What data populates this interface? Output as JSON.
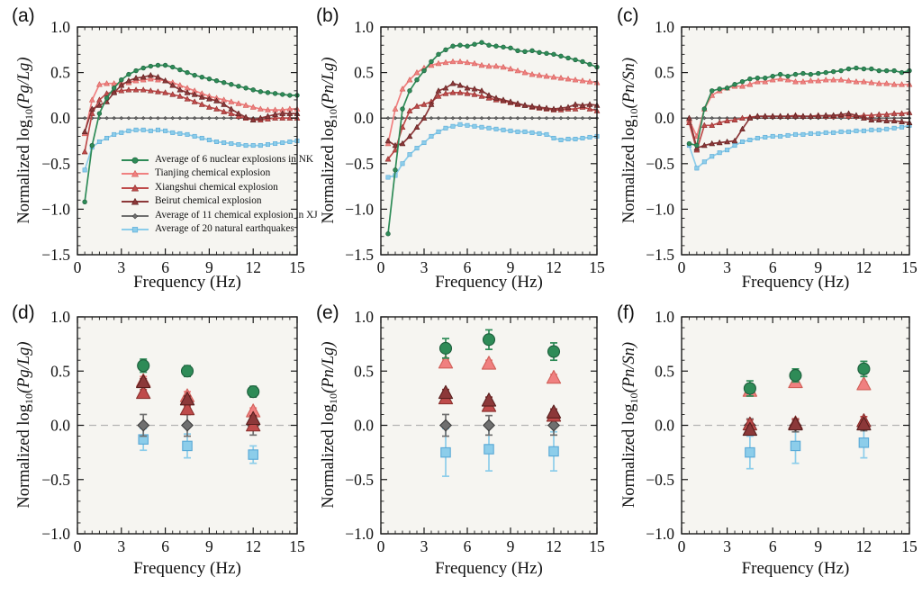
{
  "style": {
    "plot_bg": "#f6f5f1",
    "frame": "#1a1a1a",
    "zero_dash": "#b5b5b5",
    "tick_label": "#111111"
  },
  "series": [
    {
      "id": "nk",
      "label": "Average of 6 nuclear explosions in NK",
      "color": "#2e8b57",
      "edge": "#1d5e3c",
      "marker": "circle"
    },
    {
      "id": "tianjing",
      "label": "Tianjing chemical explosion",
      "color": "#f08080",
      "edge": "#d05f58",
      "marker": "triangle"
    },
    {
      "id": "xiangshui",
      "label": "Xiangshui chemical explosion",
      "color": "#bf4b4b",
      "edge": "#8a2f2c",
      "marker": "triangle"
    },
    {
      "id": "beirut",
      "label": "Beirut chemical explosion",
      "color": "#8c3839",
      "edge": "#591f1e",
      "marker": "triangle"
    },
    {
      "id": "xj",
      "label": "Average of 11 chemical explosion in XJ",
      "color": "#6f6f6f",
      "edge": "#3f3f3f",
      "marker": "diamond"
    },
    {
      "id": "eq",
      "label": "Average of 20 natural earthquakes",
      "color": "#8ccdea",
      "edge": "#58a8d6",
      "marker": "square"
    }
  ],
  "freq_x": [
    0.5,
    1,
    1.5,
    2,
    2.5,
    3,
    3.5,
    4,
    4.5,
    5,
    5.5,
    6,
    6.5,
    7,
    7.5,
    8,
    8.5,
    9,
    9.5,
    10,
    10.5,
    11,
    11.5,
    12,
    12.5,
    13,
    13.5,
    14,
    14.5,
    15
  ],
  "scatter_x": [
    4.5,
    7.5,
    12
  ],
  "chart_data": [
    {
      "type": "line",
      "tag": "(a)",
      "xlabel": "Frequency (Hz)",
      "ylabel_prefix": "Normalized log",
      "ylabel_sub": "10",
      "ylabel_ratio": "(Pg/Lg)",
      "xlim": [
        0,
        15
      ],
      "ylim": [
        -1.5,
        1.0
      ],
      "xticks": [
        0,
        3,
        6,
        9,
        12,
        15
      ],
      "yticks": [
        1.0,
        0.5,
        0.0,
        -0.5,
        -1.0,
        -1.5
      ],
      "series_values": {
        "nk": [
          -0.92,
          -0.3,
          0.05,
          0.22,
          0.33,
          0.42,
          0.48,
          0.52,
          0.55,
          0.57,
          0.58,
          0.58,
          0.56,
          0.53,
          0.5,
          0.47,
          0.45,
          0.43,
          0.41,
          0.39,
          0.37,
          0.35,
          0.33,
          0.31,
          0.29,
          0.28,
          0.27,
          0.26,
          0.25,
          0.25
        ],
        "tianjing": [
          -0.17,
          0.2,
          0.37,
          0.38,
          0.38,
          0.38,
          0.39,
          0.41,
          0.42,
          0.43,
          0.42,
          0.41,
          0.39,
          0.36,
          0.33,
          0.3,
          0.27,
          0.24,
          0.22,
          0.2,
          0.18,
          0.16,
          0.14,
          0.12,
          0.1,
          0.09,
          0.09,
          0.09,
          0.1,
          0.1
        ],
        "xiangshui": [
          -0.37,
          0.05,
          0.2,
          0.27,
          0.29,
          0.3,
          0.31,
          0.31,
          0.31,
          0.3,
          0.29,
          0.28,
          0.26,
          0.24,
          0.21,
          0.18,
          0.15,
          0.12,
          0.1,
          0.07,
          0.05,
          0.02,
          0.0,
          -0.02,
          -0.02,
          -0.01,
          0.0,
          0.0,
          0.0,
          0.0
        ],
        "beirut": [
          -0.15,
          0.1,
          0.14,
          0.18,
          0.28,
          0.36,
          0.41,
          0.44,
          0.45,
          0.47,
          0.45,
          0.41,
          0.36,
          0.31,
          0.28,
          0.26,
          0.23,
          0.21,
          0.19,
          0.15,
          0.1,
          0.05,
          0.01,
          -0.02,
          0.0,
          0.02,
          0.04,
          0.05,
          0.05,
          0.05
        ],
        "xj": [
          0,
          0,
          0,
          0,
          0,
          0,
          0,
          0,
          0,
          0,
          0,
          0,
          0,
          0,
          0,
          0,
          0,
          0,
          0,
          0,
          0,
          0,
          0,
          0,
          0,
          0,
          0,
          0,
          0,
          0
        ],
        "eq": [
          -0.57,
          -0.32,
          -0.26,
          -0.22,
          -0.18,
          -0.16,
          -0.14,
          -0.13,
          -0.13,
          -0.14,
          -0.13,
          -0.14,
          -0.16,
          -0.17,
          -0.18,
          -0.2,
          -0.22,
          -0.24,
          -0.26,
          -0.27,
          -0.28,
          -0.29,
          -0.3,
          -0.3,
          -0.3,
          -0.29,
          -0.28,
          -0.27,
          -0.26,
          -0.25
        ]
      }
    },
    {
      "type": "line",
      "tag": "(b)",
      "xlabel": "Frequency (Hz)",
      "ylabel_prefix": "Normalized log",
      "ylabel_sub": "10",
      "ylabel_ratio": "(Pn/Lg)",
      "xlim": [
        0,
        15
      ],
      "ylim": [
        -1.5,
        1.0
      ],
      "xticks": [
        0,
        3,
        6,
        9,
        12,
        15
      ],
      "yticks": [
        1.0,
        0.5,
        0.0,
        -0.5,
        -1.0,
        -1.5
      ],
      "series_values": {
        "nk": [
          -1.27,
          -0.57,
          0.1,
          0.3,
          0.42,
          0.52,
          0.62,
          0.7,
          0.75,
          0.79,
          0.8,
          0.79,
          0.81,
          0.83,
          0.8,
          0.79,
          0.78,
          0.77,
          0.74,
          0.73,
          0.74,
          0.72,
          0.71,
          0.7,
          0.68,
          0.66,
          0.64,
          0.62,
          0.59,
          0.56
        ],
        "tianjing": [
          -0.28,
          0.1,
          0.32,
          0.42,
          0.5,
          0.55,
          0.58,
          0.6,
          0.61,
          0.62,
          0.62,
          0.61,
          0.6,
          0.58,
          0.57,
          0.57,
          0.56,
          0.54,
          0.52,
          0.5,
          0.48,
          0.47,
          0.46,
          0.45,
          0.44,
          0.43,
          0.42,
          0.41,
          0.4,
          0.39
        ],
        "xiangshui": [
          -0.45,
          -0.35,
          -0.1,
          0.08,
          0.13,
          0.15,
          0.18,
          0.24,
          0.27,
          0.28,
          0.28,
          0.27,
          0.26,
          0.24,
          0.22,
          0.2,
          0.19,
          0.17,
          0.15,
          0.14,
          0.12,
          0.11,
          0.1,
          0.09,
          0.09,
          0.1,
          0.1,
          0.12,
          0.1,
          0.08
        ],
        "beirut": [
          -0.25,
          -0.3,
          -0.28,
          -0.2,
          -0.1,
          0.0,
          0.15,
          0.3,
          0.33,
          0.38,
          0.36,
          0.33,
          0.32,
          0.3,
          0.25,
          0.22,
          0.2,
          0.18,
          0.16,
          0.14,
          0.13,
          0.12,
          0.11,
          0.1,
          0.11,
          0.12,
          0.15,
          0.14,
          0.15,
          0.14
        ],
        "xj": [
          0,
          0,
          0,
          0,
          0,
          0,
          0,
          0,
          0,
          0,
          0,
          0,
          0,
          0,
          0,
          0,
          0,
          0,
          0,
          0,
          0,
          0,
          0,
          0,
          0,
          0,
          0,
          0,
          0,
          0
        ],
        "eq": [
          -0.65,
          -0.63,
          -0.5,
          -0.4,
          -0.33,
          -0.27,
          -0.2,
          -0.15,
          -0.11,
          -0.09,
          -0.07,
          -0.08,
          -0.09,
          -0.1,
          -0.11,
          -0.12,
          -0.13,
          -0.14,
          -0.15,
          -0.15,
          -0.16,
          -0.17,
          -0.18,
          -0.22,
          -0.24,
          -0.23,
          -0.23,
          -0.22,
          -0.21,
          -0.2
        ]
      }
    },
    {
      "type": "line",
      "tag": "(c)",
      "xlabel": "Frequency (Hz)",
      "ylabel_prefix": "Normalized log",
      "ylabel_sub": "10",
      "ylabel_ratio": "(Pn/Sn)",
      "xlim": [
        0,
        15
      ],
      "ylim": [
        -1.5,
        1.0
      ],
      "xticks": [
        0,
        3,
        6,
        9,
        12,
        15
      ],
      "yticks": [
        1.0,
        0.5,
        0.0,
        -0.5,
        -1.0,
        -1.5
      ],
      "series_values": {
        "nk": [
          -0.28,
          -0.3,
          0.1,
          0.3,
          0.32,
          0.33,
          0.37,
          0.4,
          0.43,
          0.44,
          0.44,
          0.46,
          0.48,
          0.46,
          0.48,
          0.49,
          0.48,
          0.49,
          0.5,
          0.51,
          0.52,
          0.54,
          0.55,
          0.54,
          0.54,
          0.52,
          0.52,
          0.52,
          0.5,
          0.52
        ],
        "tianjing": [
          -0.02,
          -0.2,
          0.1,
          0.25,
          0.3,
          0.33,
          0.35,
          0.35,
          0.37,
          0.4,
          0.4,
          0.42,
          0.43,
          0.42,
          0.4,
          0.4,
          0.41,
          0.41,
          0.42,
          0.42,
          0.42,
          0.41,
          0.4,
          0.4,
          0.39,
          0.38,
          0.38,
          0.37,
          0.37,
          0.37
        ],
        "xiangshui": [
          -0.05,
          -0.35,
          -0.08,
          -0.08,
          -0.05,
          -0.03,
          -0.02,
          0.0,
          0.01,
          0.02,
          0.02,
          0.02,
          0.02,
          0.02,
          0.03,
          0.02,
          0.02,
          0.03,
          0.02,
          0.02,
          0.03,
          0.02,
          0.02,
          0.03,
          0.03,
          0.04,
          0.04,
          0.05,
          0.05,
          0.06
        ],
        "beirut": [
          0.0,
          -0.33,
          -0.3,
          -0.28,
          -0.27,
          -0.26,
          -0.25,
          -0.12,
          0.0,
          0.02,
          0.02,
          0.02,
          0.02,
          0.02,
          0.02,
          0.02,
          0.02,
          0.02,
          0.03,
          0.03,
          0.04,
          0.05,
          0.03,
          0.0,
          -0.02,
          -0.02,
          -0.03,
          -0.03,
          -0.04,
          -0.05
        ],
        "xj": [
          0,
          0,
          0,
          0,
          0,
          0,
          0,
          0,
          0,
          0,
          0,
          0,
          0,
          0,
          0,
          0,
          0,
          0,
          0,
          0,
          0,
          0,
          0,
          0,
          0,
          0,
          0,
          0,
          0,
          0
        ],
        "eq": [
          -0.3,
          -0.55,
          -0.48,
          -0.42,
          -0.38,
          -0.35,
          -0.3,
          -0.26,
          -0.24,
          -0.22,
          -0.21,
          -0.2,
          -0.2,
          -0.19,
          -0.18,
          -0.18,
          -0.17,
          -0.17,
          -0.16,
          -0.16,
          -0.15,
          -0.15,
          -0.14,
          -0.14,
          -0.13,
          -0.13,
          -0.12,
          -0.11,
          -0.1,
          -0.08
        ]
      }
    },
    {
      "type": "scatter",
      "tag": "(d)",
      "xlabel": "Frequency (Hz)",
      "ylabel_prefix": "Normalized log",
      "ylabel_sub": "10",
      "ylabel_ratio": "(Pg/Lg)",
      "xlim": [
        0,
        15
      ],
      "ylim": [
        -1.0,
        1.0
      ],
      "xticks": [
        0,
        3,
        6,
        9,
        12,
        15
      ],
      "yticks": [
        1.0,
        0.5,
        0.0,
        -0.5,
        -1.0
      ],
      "series_values": {
        "nk": [
          0.55,
          0.5,
          0.31
        ],
        "tianjing": [
          0.41,
          0.27,
          0.13
        ],
        "xiangshui": [
          0.3,
          0.15,
          0.0
        ],
        "beirut": [
          0.4,
          0.24,
          0.06
        ],
        "xj": [
          0.0,
          0.0,
          0.0
        ],
        "eq": [
          -0.13,
          -0.19,
          -0.27
        ]
      },
      "errors": {
        "nk": [
          0.06,
          0.05,
          0.05
        ],
        "tianjing": [
          0.04,
          0.04,
          0.03
        ],
        "xiangshui": [
          0.03,
          0.03,
          0.03
        ],
        "beirut": [
          0.03,
          0.03,
          0.03
        ],
        "xj": [
          0.1,
          0.1,
          0.09
        ],
        "eq": [
          0.1,
          0.11,
          0.08
        ]
      }
    },
    {
      "type": "scatter",
      "tag": "(e)",
      "xlabel": "Frequency (Hz)",
      "ylabel_prefix": "Normalized log",
      "ylabel_sub": "10",
      "ylabel_ratio": "(Pn/Lg)",
      "xlim": [
        0,
        15
      ],
      "ylim": [
        -1.0,
        1.0
      ],
      "xticks": [
        0,
        3,
        6,
        9,
        12,
        15
      ],
      "yticks": [
        1.0,
        0.5,
        0.0,
        -0.5,
        -1.0
      ],
      "series_values": {
        "nk": [
          0.71,
          0.79,
          0.68
        ],
        "tianjing": [
          0.58,
          0.57,
          0.44
        ],
        "xiangshui": [
          0.25,
          0.18,
          0.09
        ],
        "beirut": [
          0.3,
          0.23,
          0.12
        ],
        "xj": [
          0.0,
          0.0,
          0.0
        ],
        "eq": [
          -0.25,
          -0.22,
          -0.24
        ]
      },
      "errors": {
        "nk": [
          0.09,
          0.09,
          0.08
        ],
        "tianjing": [
          0.03,
          0.03,
          0.03
        ],
        "xiangshui": [
          0.03,
          0.03,
          0.03
        ],
        "beirut": [
          0.03,
          0.03,
          0.03
        ],
        "xj": [
          0.1,
          0.09,
          0.09
        ],
        "eq": [
          0.22,
          0.2,
          0.18
        ]
      }
    },
    {
      "type": "scatter",
      "tag": "(f)",
      "xlabel": "Frequency (Hz)",
      "ylabel_prefix": "Normalized log",
      "ylabel_sub": "10",
      "ylabel_ratio": "(Pn/Sn)",
      "xlim": [
        0,
        15
      ],
      "ylim": [
        -1.0,
        1.0
      ],
      "xticks": [
        0,
        3,
        6,
        9,
        12,
        15
      ],
      "yticks": [
        1.0,
        0.5,
        0.0,
        -0.5,
        -1.0
      ],
      "series_values": {
        "nk": [
          0.34,
          0.46,
          0.52
        ],
        "tianjing": [
          0.32,
          0.4,
          0.38
        ],
        "xiangshui": [
          0.01,
          0.02,
          0.04
        ],
        "beirut": [
          -0.04,
          0.01,
          0.01
        ],
        "xj": [
          0.0,
          0.0,
          0.0
        ],
        "eq": [
          -0.25,
          -0.19,
          -0.16
        ]
      },
      "errors": {
        "nk": [
          0.07,
          0.06,
          0.07
        ],
        "tianjing": [
          0.03,
          0.02,
          0.02
        ],
        "xiangshui": [
          0.04,
          0.04,
          0.04
        ],
        "beirut": [
          0.04,
          0.04,
          0.04
        ],
        "xj": [
          0.06,
          0.06,
          0.05
        ],
        "eq": [
          0.15,
          0.16,
          0.14
        ]
      }
    }
  ]
}
